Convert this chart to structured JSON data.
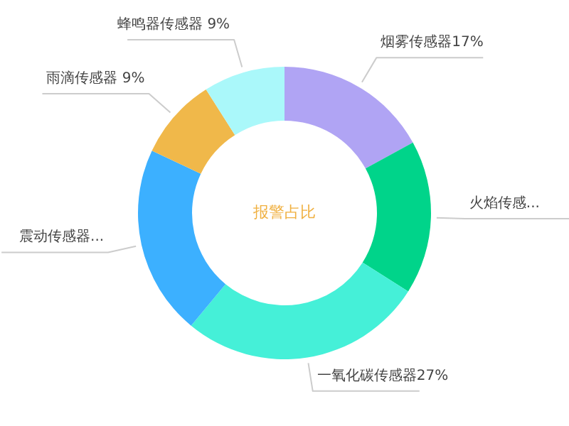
{
  "chart_data": {
    "type": "donut",
    "title": "报警占比",
    "categories": [
      "烟雾传感器",
      "火焰传感...",
      "一氧化碳传感器",
      "震动传感器...",
      "雨滴传感器",
      "蜂鸣器传感器"
    ],
    "values": [
      17,
      17,
      27,
      21,
      9,
      9
    ],
    "value_labels": [
      "17%",
      null,
      "27%",
      null,
      " 9%",
      " 9%"
    ],
    "colors": [
      "#b0a4f4",
      "#00d48a",
      "#45f0d8",
      "#3cb0ff",
      "#f0b84a",
      "#aaf8fa"
    ],
    "legend": false
  }
}
